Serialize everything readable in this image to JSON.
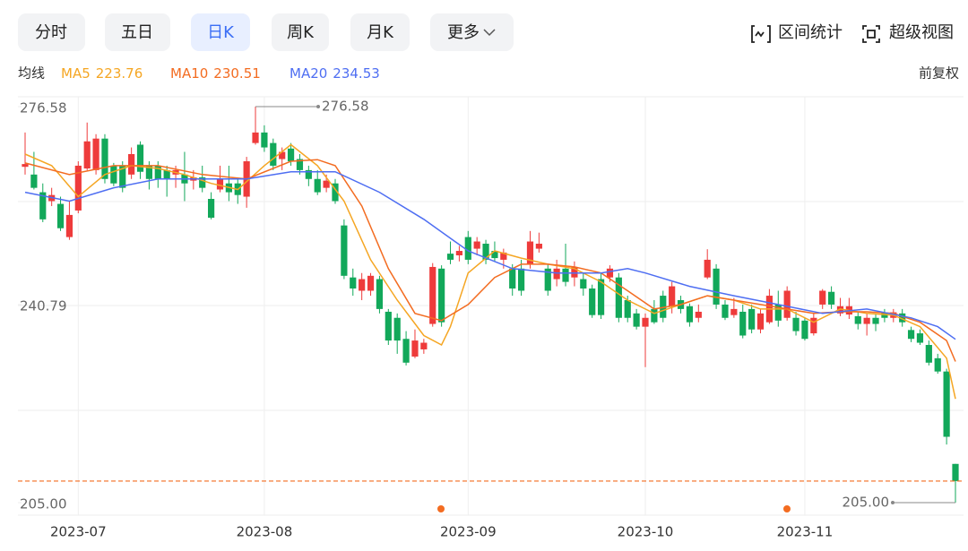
{
  "toolbar": {
    "tabs": [
      "分时",
      "五日",
      "日K",
      "周K",
      "月K",
      "更多"
    ],
    "selected": 2,
    "tools": [
      "区间统计",
      "超级视图"
    ]
  },
  "legend_label": "均线",
  "adjust": "前复权",
  "chart_data": {
    "type": "candlestick",
    "up_color": "#ee3b3b",
    "down_color": "#12a85a",
    "ylim": [
      205,
      276.58
    ],
    "yticks": [
      {
        "value": 205,
        "label": "205.00"
      },
      240.79,
      276.58
    ],
    "max_label": 276.58,
    "min_label": {
      "value": 205,
      "label": "205.00"
    },
    "categories": [
      null,
      null,
      null,
      null,
      null,
      null,
      "2023-07",
      null,
      null,
      null,
      null,
      null,
      null,
      null,
      null,
      null,
      null,
      null,
      null,
      null,
      null,
      null,
      null,
      null,
      null,
      null,
      null,
      "2023-08",
      null,
      null,
      null,
      null,
      null,
      null,
      null,
      null,
      null,
      null,
      null,
      null,
      null,
      null,
      null,
      null,
      null,
      null,
      null,
      null,
      null,
      null,
      "2023-09",
      null,
      null,
      null,
      null,
      null,
      null,
      null,
      null,
      null,
      null,
      null,
      null,
      null,
      null,
      null,
      null,
      null,
      null,
      null,
      "2023-10",
      null,
      null,
      null,
      null,
      null,
      null,
      null,
      null,
      null,
      null,
      null,
      null,
      null,
      null,
      null,
      null,
      null,
      "2023-11",
      null,
      null,
      null,
      null,
      null,
      null,
      null,
      null,
      null,
      null,
      null,
      null,
      null,
      null,
      null,
      null,
      null
    ],
    "open": [
      265.7,
      264.3,
      261.1,
      259.5,
      259.0,
      253.0,
      257.8,
      265.4,
      265.1,
      270.8,
      265.9,
      265.9,
      264.3,
      269.7,
      265.9,
      265.9,
      265.1,
      264.3,
      264.3,
      263.2,
      263.8,
      259.9,
      261.6,
      262.7,
      262.7,
      260.3,
      270.0,
      271.9,
      270.0,
      267.1,
      269.0,
      267.1,
      265.1,
      263.5,
      261.9,
      262.7,
      255.1,
      245.7,
      243.3,
      243.3,
      245.4,
      239.5,
      238.4,
      234.6,
      231.4,
      232.7,
      237.3,
      247.3,
      250.0,
      249.7,
      253.0,
      250.9,
      251.8,
      250.5,
      248.9,
      247.3,
      247.3,
      248.1,
      250.9,
      247.3,
      245.4,
      247.3,
      245.7,
      245.4,
      243.7,
      245.4,
      245.7,
      245.7,
      241.6,
      239.2,
      236.8,
      240.0,
      242.4,
      240.5,
      241.6,
      240.5,
      238.4,
      245.7,
      247.3,
      240.8,
      238.9,
      239.5,
      240.0,
      236.3,
      237.6,
      240.8,
      238.4,
      238.4,
      237.9,
      235.6,
      240.8,
      243.1,
      239.2,
      239.0,
      238.7,
      237.3,
      238.4,
      239.4,
      238.4,
      239.2,
      236.2,
      235.6,
      233.5,
      231.1,
      228.7,
      212.0
    ],
    "high": [
      271.9,
      268.4,
      262.7,
      261.9,
      260.3,
      259.5,
      266.7,
      273.7,
      271.6,
      271.6,
      266.4,
      266.7,
      269.2,
      270.3,
      266.7,
      266.7,
      265.9,
      265.9,
      268.4,
      265.1,
      265.9,
      261.1,
      265.9,
      265.9,
      263.5,
      267.5,
      276.58,
      273.2,
      270.8,
      269.2,
      270.0,
      268.0,
      265.9,
      265.1,
      264.3,
      263.5,
      256.2,
      247.3,
      246.5,
      246.5,
      246.0,
      240.0,
      239.2,
      236.0,
      236.3,
      234.6,
      248.3,
      247.9,
      252.2,
      251.4,
      254.1,
      253.0,
      252.5,
      252.2,
      250.9,
      248.1,
      248.9,
      254.1,
      253.8,
      248.1,
      248.9,
      251.8,
      248.6,
      246.5,
      244.4,
      246.5,
      247.9,
      246.5,
      242.4,
      240.0,
      239.2,
      241.6,
      243.3,
      244.9,
      242.4,
      241.0,
      240.8,
      250.8,
      248.1,
      241.6,
      242.0,
      240.8,
      240.8,
      240.0,
      243.6,
      243.3,
      244.1,
      239.5,
      238.4,
      239.2,
      243.6,
      244.1,
      242.0,
      242.0,
      239.4,
      239.2,
      239.2,
      240.0,
      240.0,
      240.0,
      236.8,
      236.3,
      234.3,
      231.9,
      229.2,
      212.0
    ],
    "low": [
      264.3,
      261.6,
      255.7,
      258.6,
      254.1,
      252.5,
      257.3,
      265.1,
      264.3,
      262.7,
      262.2,
      261.1,
      263.5,
      263.5,
      261.6,
      261.9,
      260.3,
      261.9,
      259.5,
      261.6,
      261.1,
      256.2,
      261.1,
      259.5,
      259.0,
      258.3,
      269.7,
      268.4,
      265.1,
      265.1,
      265.9,
      264.3,
      262.2,
      260.6,
      261.1,
      259.0,
      245.4,
      242.4,
      241.6,
      242.4,
      239.2,
      233.5,
      231.9,
      229.8,
      231.1,
      231.9,
      236.8,
      236.8,
      248.1,
      248.6,
      248.1,
      249.7,
      248.1,
      248.6,
      247.3,
      242.4,
      242.4,
      247.3,
      250.2,
      242.4,
      244.1,
      244.1,
      244.1,
      242.4,
      238.4,
      238.2,
      244.9,
      237.6,
      237.6,
      236.3,
      229.5,
      237.3,
      237.6,
      239.2,
      239.2,
      236.8,
      237.6,
      245.4,
      240.0,
      238.0,
      238.4,
      234.7,
      235.6,
      235.6,
      237.3,
      236.8,
      237.9,
      235.2,
      234.3,
      235.2,
      240.0,
      240.0,
      238.7,
      238.2,
      236.3,
      235.2,
      236.0,
      237.6,
      237.6,
      236.8,
      234.0,
      233.5,
      229.8,
      228.3,
      215.5,
      205
    ],
    "close": [
      266.2,
      261.9,
      256.2,
      260.6,
      254.6,
      257.0,
      265.9,
      270.3,
      270.8,
      263.5,
      262.7,
      261.9,
      268.0,
      264.8,
      263.5,
      263.5,
      263.5,
      265.1,
      262.7,
      263.8,
      261.9,
      256.5,
      263.5,
      261.1,
      260.6,
      266.7,
      271.9,
      269.2,
      265.9,
      268.4,
      266.7,
      265.1,
      263.5,
      261.1,
      263.2,
      259.5,
      246.0,
      243.7,
      245.4,
      246.0,
      240.0,
      234.3,
      234.3,
      230.3,
      234.3,
      233.9,
      247.6,
      237.6,
      248.9,
      250.5,
      248.9,
      252.2,
      248.9,
      249.2,
      250.2,
      243.7,
      243.3,
      252.2,
      251.8,
      243.3,
      247.3,
      244.9,
      247.6,
      243.7,
      238.9,
      238.9,
      247.3,
      238.4,
      238.4,
      236.8,
      238.4,
      237.6,
      238.4,
      244.1,
      240.0,
      237.6,
      239.5,
      248.9,
      240.8,
      238.4,
      240.0,
      235.2,
      236.3,
      239.2,
      242.4,
      237.9,
      243.3,
      236.0,
      234.6,
      238.4,
      243.3,
      240.8,
      240.5,
      240.5,
      237.3,
      238.4,
      237.3,
      238.4,
      239.4,
      237.6,
      234.6,
      233.9,
      230.3,
      228.7,
      216.9,
      208.9
    ],
    "ma": [
      {
        "name": "MA5",
        "color": "#f5a623",
        "x": [
          0,
          3,
          6,
          9,
          12,
          15,
          18,
          21,
          24,
          27,
          30,
          33,
          36,
          39,
          42,
          45,
          47,
          48,
          50,
          53,
          56,
          59,
          62,
          65,
          68,
          71,
          74,
          77,
          80,
          83,
          86,
          89,
          92,
          95,
          98,
          101,
          104,
          105
        ],
        "values": [
          268.0,
          265.9,
          260.3,
          264.3,
          265.9,
          265.4,
          264.3,
          262.7,
          261.6,
          265.9,
          269.7,
          265.9,
          259.5,
          248.9,
          241.6,
          235.2,
          233.5,
          236.8,
          246.5,
          250.5,
          249.2,
          248.1,
          247.3,
          244.9,
          241.6,
          239.2,
          240.8,
          242.4,
          241.6,
          240.0,
          240.0,
          237.6,
          240.0,
          239.2,
          238.9,
          236.8,
          231.1,
          223.76
        ]
      },
      {
        "name": "MA10",
        "color": "#f36c21",
        "x": [
          0,
          5,
          10,
          15,
          20,
          25,
          30,
          33,
          35,
          38,
          41,
          44,
          47,
          50,
          53,
          56,
          59,
          62,
          65,
          68,
          71,
          74,
          77,
          80,
          83,
          86,
          89,
          92,
          95,
          98,
          101,
          104,
          105
        ],
        "values": [
          266.4,
          264.3,
          265.9,
          265.9,
          264.3,
          263.5,
          266.7,
          267.0,
          265.9,
          258.6,
          247.3,
          239.2,
          237.9,
          240.8,
          245.7,
          248.1,
          248.1,
          247.6,
          246.5,
          243.3,
          240.0,
          240.8,
          242.4,
          241.6,
          240.8,
          240.0,
          239.2,
          239.5,
          239.5,
          239.2,
          237.6,
          234.3,
          230.51
        ]
      },
      {
        "name": "MA20",
        "color": "#4e6ef2",
        "x": [
          0,
          5,
          10,
          15,
          20,
          25,
          30,
          35,
          40,
          45,
          50,
          55,
          60,
          65,
          68,
          70,
          75,
          80,
          85,
          90,
          95,
          100,
          103,
          105
        ],
        "values": [
          261.1,
          259.5,
          261.9,
          263.5,
          263.5,
          263.5,
          264.8,
          264.8,
          261.1,
          256.2,
          250.5,
          247.3,
          246.5,
          246.5,
          247.3,
          246.5,
          244.1,
          242.4,
          240.8,
          239.2,
          240.0,
          238.4,
          236.8,
          234.53
        ]
      }
    ]
  }
}
